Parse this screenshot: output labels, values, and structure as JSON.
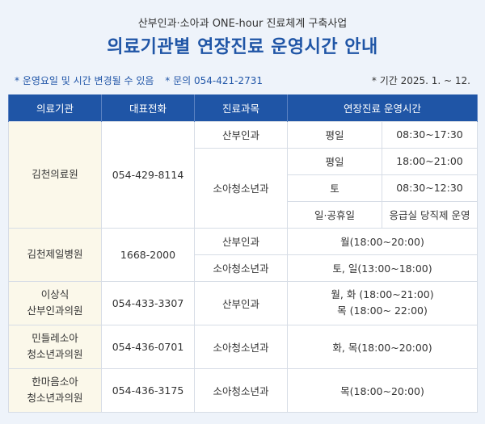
{
  "header": {
    "subtitle": "산부인과·소아과 ONE-hour 진료체계 구축사업",
    "title": "의료기관별 연장진료 운영시간 안내"
  },
  "notes": {
    "change": "* 운영요일 및 시간 변경될 수 있음",
    "contact": "* 문의 054-421-2731",
    "period": "* 기간 2025. 1. ~ 12."
  },
  "table": {
    "headers": [
      "의료기관",
      "대표전화",
      "진료과목",
      "연장진료 운영시간"
    ],
    "r1": {
      "org": "김천의료원",
      "phone": "054-429-8114",
      "dept1": "산부인과",
      "dept2": "소아청소년과",
      "slots": [
        {
          "day": "평일",
          "time": "08:30~17:30"
        },
        {
          "day": "평일",
          "time": "18:00~21:00"
        },
        {
          "day": "토",
          "time": "08:30~12:30"
        },
        {
          "day": "일·공휴일",
          "time": "응급실 당직제 운영"
        }
      ]
    },
    "r2": {
      "org": "김천제일병원",
      "phone": "1668-2000",
      "dept1": "산부인과",
      "time1": "월(18:00~20:00)",
      "dept2": "소아청소년과",
      "time2": "토, 일(13:00~18:00)"
    },
    "r3": {
      "org_line1": "이상식",
      "org_line2": "산부인과의원",
      "phone": "054-433-3307",
      "dept": "산부인과",
      "time_line1": "월, 화 (18:00~21:00)",
      "time_line2": "목 (18:00~ 22:00)"
    },
    "r4": {
      "org_line1": "민들레소아",
      "org_line2": "청소년과의원",
      "phone": "054-436-0701",
      "dept": "소아청소년과",
      "time": "화, 목(18:00~20:00)"
    },
    "r5": {
      "org_line1": "한마음소아",
      "org_line2": "청소년과의원",
      "phone": "054-436-3175",
      "dept": "소아청소년과",
      "time": "목(18:00~20:00)"
    }
  }
}
